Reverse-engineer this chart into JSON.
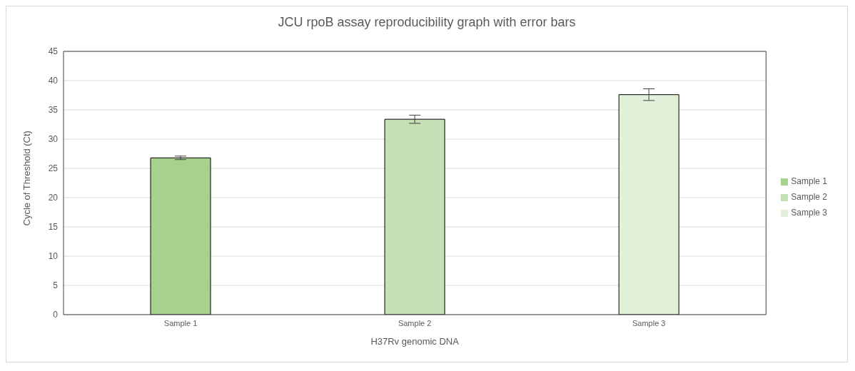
{
  "chart_data": {
    "type": "bar",
    "title": "JCU rpoB assay reproducibility graph with error bars",
    "xlabel": "H37Rv genomic DNA",
    "ylabel": "Cycle of Threshold (Ct)",
    "categories": [
      "Sample 1",
      "Sample 2",
      "Sample 3"
    ],
    "series": [
      {
        "name": "Sample 1",
        "color": "#a9d18e",
        "values": [
          26.8,
          null,
          null
        ],
        "errors": [
          0.3,
          null,
          null
        ]
      },
      {
        "name": "Sample 2",
        "color": "#c5e0b4",
        "values": [
          null,
          33.4,
          null
        ],
        "errors": [
          null,
          0.7,
          null
        ]
      },
      {
        "name": "Sample 3",
        "color": "#e2f0d9",
        "values": [
          null,
          null,
          37.6
        ],
        "errors": [
          null,
          null,
          1.0
        ]
      }
    ],
    "ylim": [
      0,
      45
    ],
    "yticks": [
      0,
      5,
      10,
      15,
      20,
      25,
      30,
      35,
      40,
      45
    ],
    "grid": "y",
    "legend": "right"
  }
}
